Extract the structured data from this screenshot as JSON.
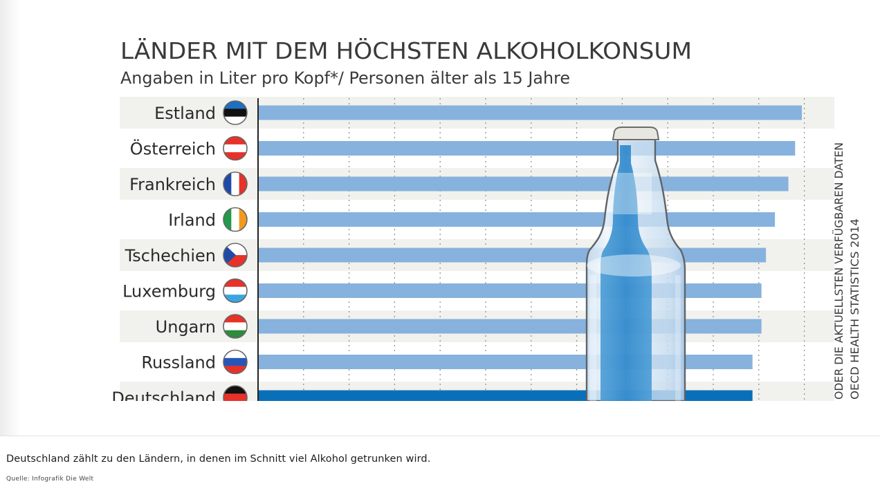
{
  "chart_data": {
    "type": "bar",
    "orientation": "horizontal",
    "title": "LÄNDER MIT DEM HÖCHSTEN ALKOHOLKONSUM",
    "subtitle": "Angaben in Liter pro Kopf*/ Personen älter als 15 Jahre",
    "categories": [
      "Estland",
      "Österreich",
      "Frankreich",
      "Irland",
      "Tschechien",
      "Luxemburg",
      "Ungarn",
      "Russland",
      "Deutschland"
    ],
    "values": [
      12.1,
      11.95,
      11.8,
      11.5,
      11.3,
      11.2,
      11.2,
      11.0,
      11.0
    ],
    "highlight": "Deutschland",
    "xlim": [
      0,
      12.5
    ],
    "grid": true,
    "side_note_line1": "ODER DIE AKTUELLSTEN VERFÜGBAREN DATEN",
    "side_note_line2": "OECD HEALTH STATISTICS 2014",
    "colors": {
      "bar": "#86b2dd",
      "bar_highlight": "#0a6fb9",
      "band": "#f1f1ed",
      "axis": "#222222",
      "grid": "#8a8a8a",
      "bottle_glass": "#d9e9f6",
      "bottle_core": "#2e8bcf",
      "bottle_cap": "#e8e6e0"
    },
    "flags": [
      {
        "country": "Estland",
        "stripes": [
          "#1f6fc1",
          "#111111",
          "#ffffff"
        ]
      },
      {
        "country": "Österreich",
        "stripes": [
          "#e63229",
          "#ffffff",
          "#e63229"
        ]
      },
      {
        "country": "Frankreich",
        "vertical": [
          "#1f4aa8",
          "#ffffff",
          "#e63229"
        ]
      },
      {
        "country": "Irland",
        "vertical": [
          "#229a4a",
          "#ffffff",
          "#f39a1e"
        ]
      },
      {
        "country": "Tschechien",
        "stripes": [
          "#ffffff",
          "#e63229"
        ],
        "triangle": "#1f4aa8"
      },
      {
        "country": "Luxemburg",
        "stripes": [
          "#e63229",
          "#ffffff",
          "#3aa6e0"
        ]
      },
      {
        "country": "Ungarn",
        "stripes": [
          "#e63229",
          "#ffffff",
          "#2e8a3c"
        ]
      },
      {
        "country": "Russland",
        "stripes": [
          "#ffffff",
          "#2657b8",
          "#e63229"
        ]
      },
      {
        "country": "Deutschland",
        "stripes": [
          "#111111",
          "#e63229",
          "#f7c21b"
        ]
      }
    ]
  },
  "caption": {
    "text": "Deutschland zählt zu den Ländern, in denen im Schnitt viel Alkohol getrunken wird.",
    "source": "Quelle: Infografik Die Welt"
  }
}
